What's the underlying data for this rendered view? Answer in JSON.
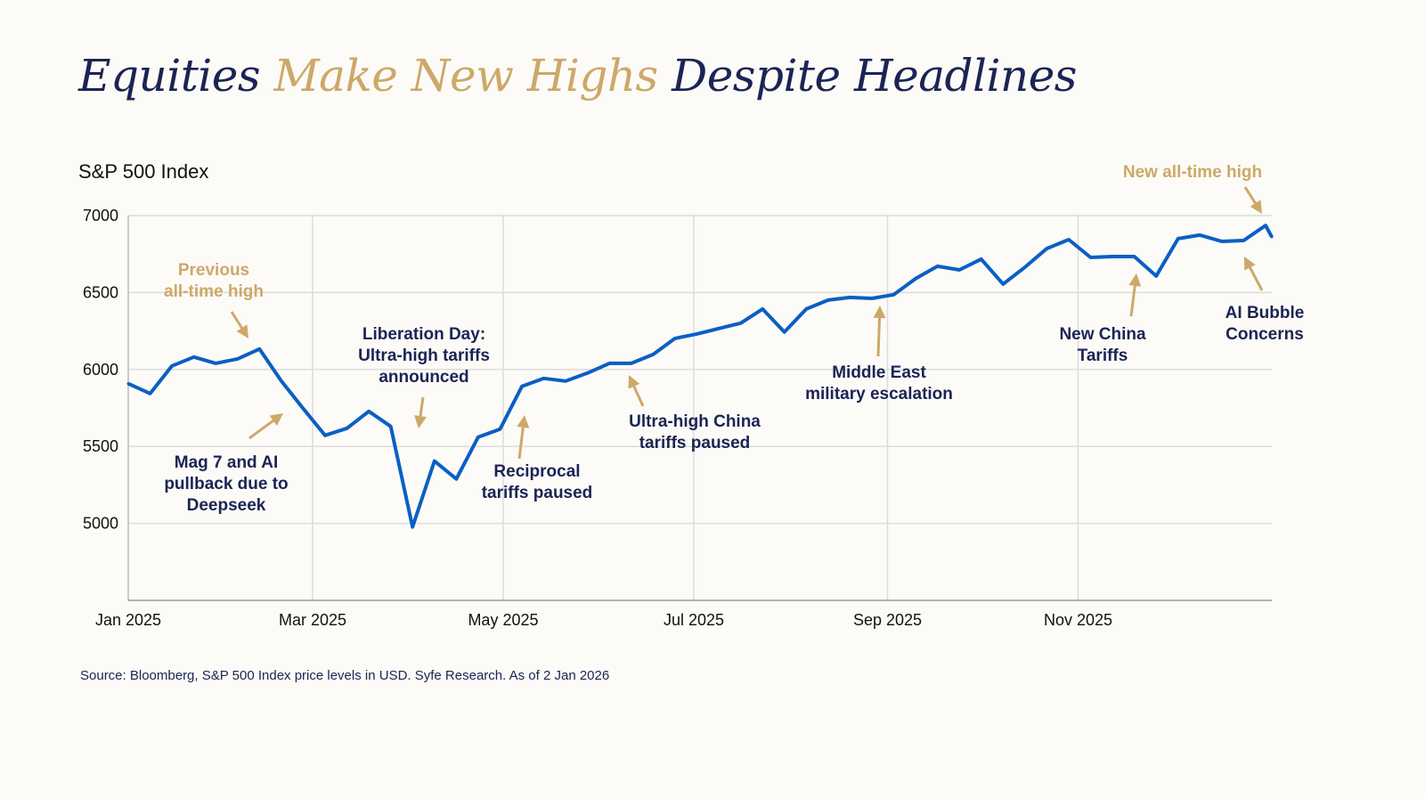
{
  "title": {
    "part1": "Equities ",
    "highlight": "Make New Highs",
    "part2": " Despite Headlines"
  },
  "subtitle": "S&P 500 Index",
  "source": "Source: Bloomberg, S&P 500 Index price levels in USD. Syfe Research. As of 2 Jan 2026",
  "colors": {
    "navy": "#1b2454",
    "gold": "#cda869",
    "line": "#0a5fc4",
    "grid": "#dcdcdc",
    "background": "#fcfbf7"
  },
  "annotations": {
    "previous_high": [
      "Previous",
      "all-time high"
    ],
    "mag7": [
      "Mag 7 and AI",
      "pullback due to",
      "Deepseek"
    ],
    "liberation": [
      "Liberation Day:",
      "Ultra-high tariffs",
      "announced"
    ],
    "reciprocal": [
      "Reciprocal",
      "tariffs paused"
    ],
    "china_paused": [
      "Ultra-high China",
      "tariffs paused"
    ],
    "middle_east": [
      "Middle East",
      "military escalation"
    ],
    "new_china": [
      "New China",
      "Tariffs"
    ],
    "ai_bubble": [
      "AI Bubble",
      "Concerns"
    ],
    "new_high": [
      "New all-time high"
    ]
  },
  "chart_data": {
    "type": "line",
    "title": "Equities Make New Highs Despite Headlines",
    "ylabel": "S&P 500 Index",
    "xlabel": "",
    "ylim": [
      4500,
      7000
    ],
    "yticks": [
      5000,
      5500,
      6000,
      6500,
      7000
    ],
    "xlim": [
      "2025-01-01",
      "2026-01-02"
    ],
    "xticks": [
      {
        "date": "2025-01-01",
        "label": "Jan 2025"
      },
      {
        "date": "2025-03-01",
        "label": "Mar 2025"
      },
      {
        "date": "2025-05-01",
        "label": "May 2025"
      },
      {
        "date": "2025-07-01",
        "label": "Jul 2025"
      },
      {
        "date": "2025-09-01",
        "label": "Sep 2025"
      },
      {
        "date": "2025-11-01",
        "label": "Nov 2025"
      }
    ],
    "grid": true,
    "series": [
      {
        "name": "S&P 500 Index",
        "dates": [
          "2025-01-01",
          "2025-01-08",
          "2025-01-15",
          "2025-01-22",
          "2025-01-29",
          "2025-02-05",
          "2025-02-12",
          "2025-02-19",
          "2025-02-26",
          "2025-03-05",
          "2025-03-12",
          "2025-03-19",
          "2025-03-26",
          "2025-04-02",
          "2025-04-09",
          "2025-04-16",
          "2025-04-23",
          "2025-04-30",
          "2025-05-07",
          "2025-05-14",
          "2025-05-21",
          "2025-05-28",
          "2025-06-04",
          "2025-06-11",
          "2025-06-18",
          "2025-06-25",
          "2025-07-02",
          "2025-07-09",
          "2025-07-16",
          "2025-07-23",
          "2025-07-30",
          "2025-08-06",
          "2025-08-13",
          "2025-08-20",
          "2025-08-27",
          "2025-09-03",
          "2025-09-10",
          "2025-09-17",
          "2025-09-24",
          "2025-10-01",
          "2025-10-08",
          "2025-10-15",
          "2025-10-22",
          "2025-10-29",
          "2025-11-05",
          "2025-11-12",
          "2025-11-19",
          "2025-11-26",
          "2025-12-03",
          "2025-12-10",
          "2025-12-17",
          "2025-12-24",
          "2025-12-31",
          "2026-01-02"
        ],
        "values": [
          5908,
          5844,
          6023,
          6081,
          6040,
          6069,
          6133,
          5925,
          5746,
          5572,
          5618,
          5728,
          5630,
          4977,
          5405,
          5289,
          5561,
          5613,
          5890,
          5942,
          5925,
          5977,
          6040,
          6040,
          6098,
          6202,
          6231,
          6266,
          6301,
          6393,
          6243,
          6393,
          6451,
          6468,
          6462,
          6486,
          6590,
          6671,
          6647,
          6717,
          6555,
          6665,
          6786,
          6844,
          6728,
          6734,
          6734,
          6607,
          6850,
          6873,
          6832,
          6838,
          6936,
          6861
        ]
      }
    ]
  }
}
